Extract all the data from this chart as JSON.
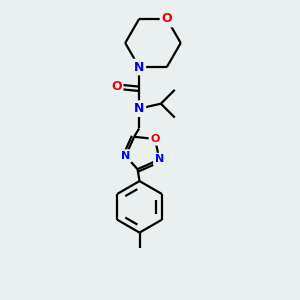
{
  "bg_color": "#eaf0f0",
  "atom_colors": {
    "N": "#0000ee",
    "O": "#ee0000",
    "bond": "#000000"
  },
  "figsize": [
    3.0,
    3.0
  ],
  "dpi": 100,
  "lw": 1.6
}
